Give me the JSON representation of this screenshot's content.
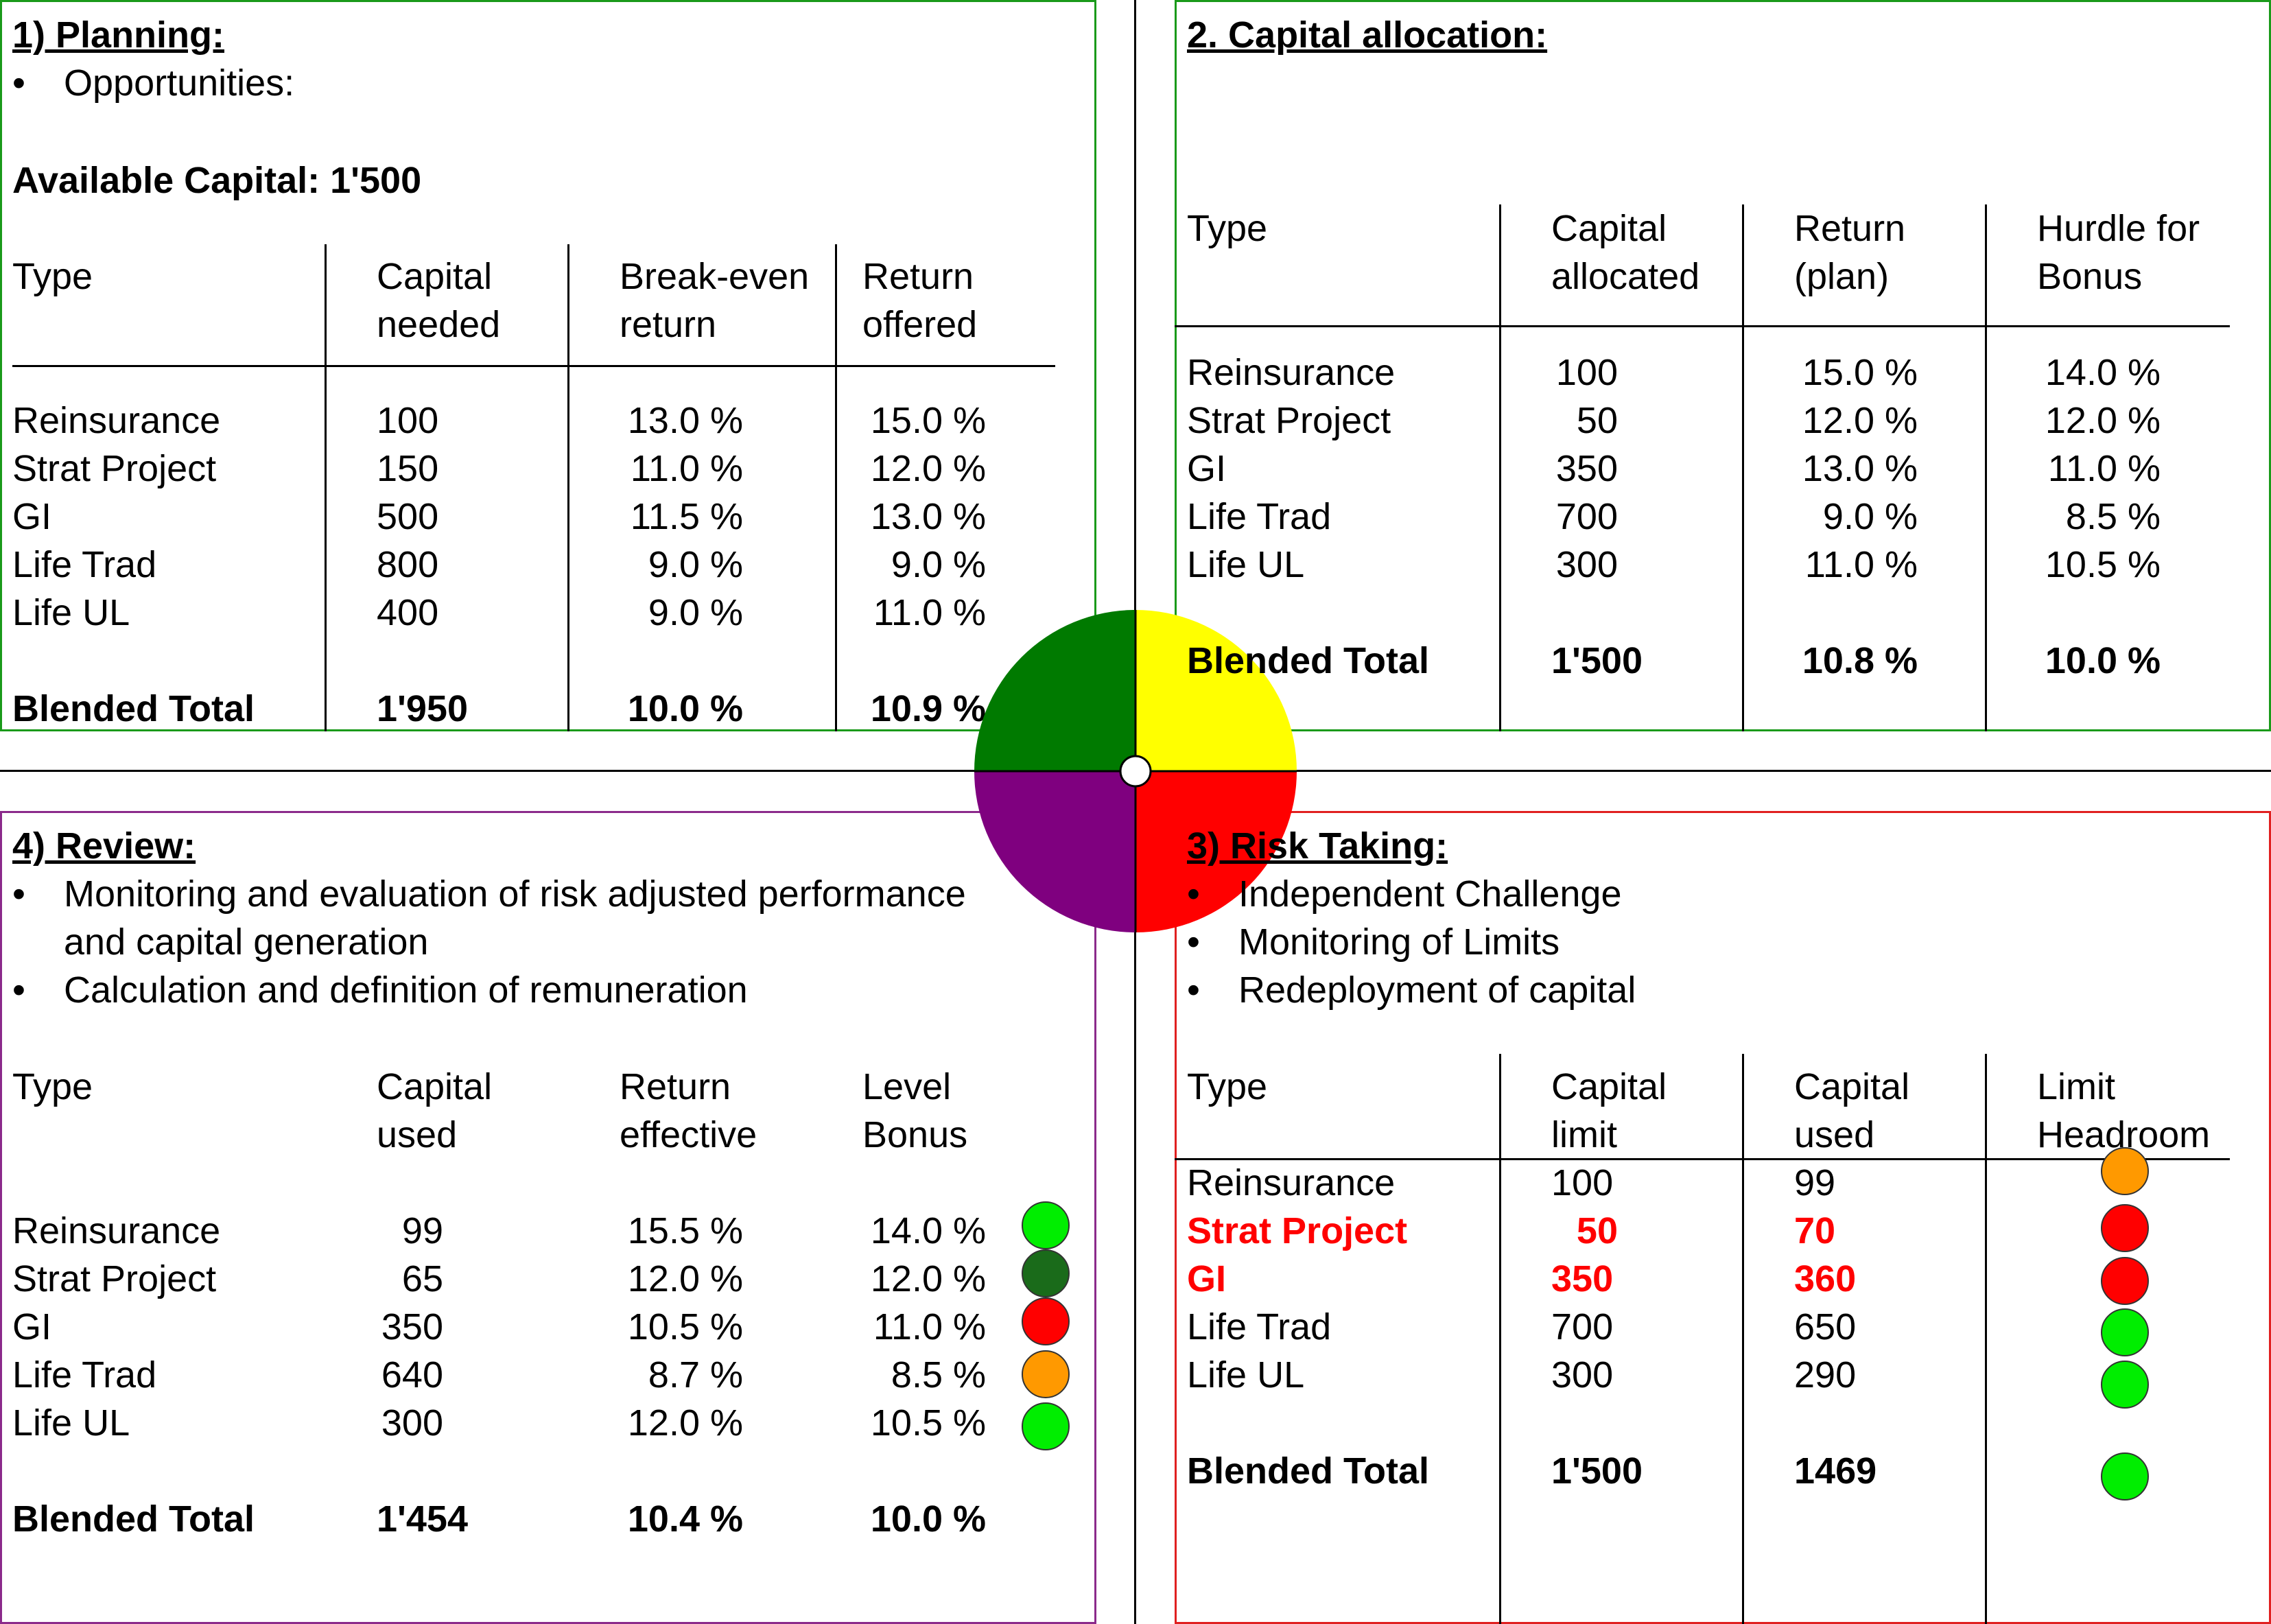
{
  "colors": {
    "q1_border": "#1a9a1a",
    "q2_border": "#1a9a1a",
    "q3_border": "#e02020",
    "q4_border": "#8b2a8b",
    "green": "#007a00",
    "yellow": "#ffff00",
    "red": "#ff0000",
    "purple": "#7f007f",
    "light_green": "#00ee00",
    "dark_green": "#1a6b1a",
    "orange": "#ff9900"
  },
  "q1": {
    "title": "1) Planning:",
    "bullets": [
      "Opportunities:"
    ],
    "available_capital": "Available Capital:  1'500",
    "headers": [
      [
        "Type",
        ""
      ],
      [
        "Capital",
        "needed"
      ],
      [
        "Break-even",
        "return"
      ],
      [
        "Return",
        "offered"
      ]
    ],
    "rows": [
      [
        "Reinsurance",
        "100",
        "13.0 %",
        "15.0 %"
      ],
      [
        "Strat Project",
        "150",
        "11.0 %",
        "12.0 %"
      ],
      [
        "GI",
        "500",
        "11.5 %",
        "13.0 %"
      ],
      [
        "Life Trad",
        "800",
        "9.0 %",
        "9.0 %"
      ],
      [
        "Life UL",
        "400",
        "9.0 %",
        "11.0 %"
      ]
    ],
    "total": [
      "Blended Total",
      "1'950",
      "10.0 %",
      "10.9 %"
    ]
  },
  "q2": {
    "title": "2. Capital allocation:",
    "headers": [
      [
        "Type",
        ""
      ],
      [
        "Capital",
        "allocated"
      ],
      [
        "Return",
        "(plan)"
      ],
      [
        "Hurdle for",
        "Bonus"
      ]
    ],
    "rows": [
      [
        "Reinsurance",
        "100",
        "15.0 %",
        "14.0 %"
      ],
      [
        "Strat Project",
        "50",
        "12.0 %",
        "12.0 %"
      ],
      [
        "GI",
        "350",
        "13.0 %",
        "11.0 %"
      ],
      [
        "Life Trad",
        "700",
        "9.0 %",
        "8.5 %"
      ],
      [
        "Life UL",
        "300",
        "11.0 %",
        "10.5 %"
      ]
    ],
    "total": [
      "Blended Total",
      "1'500",
      "10.8 %",
      "10.0 %"
    ]
  },
  "q3": {
    "title": "3) Risk Taking:",
    "bullets": [
      "Independent Challenge",
      "Monitoring of Limits",
      "Redeployment of capital"
    ],
    "headers": [
      [
        "Type",
        ""
      ],
      [
        "Capital",
        "limit"
      ],
      [
        "Capital",
        "used"
      ],
      [
        "Limit",
        "Headroom"
      ]
    ],
    "rows": [
      [
        "Reinsurance",
        "100",
        "99"
      ],
      [
        "Strat Project",
        "50",
        "70"
      ],
      [
        "GI",
        "350",
        "360"
      ],
      [
        "Life Trad",
        "700",
        "650"
      ],
      [
        "Life UL",
        "300",
        "290"
      ]
    ],
    "total": [
      "Blended Total",
      "1'500",
      "1469"
    ]
  },
  "q4": {
    "title": "4) Review:",
    "bullets": [
      "Monitoring and evaluation of risk adjusted performance",
      "and capital generation",
      "Calculation and definition of remuneration"
    ],
    "headers": [
      [
        "Type",
        ""
      ],
      [
        "Capital",
        "used"
      ],
      [
        "Return",
        "effective"
      ],
      [
        "Level",
        "Bonus"
      ]
    ],
    "rows": [
      [
        "Reinsurance",
        "99",
        "15.5 %",
        "14.0 %"
      ],
      [
        "Strat Project",
        "65",
        "12.0 %",
        "12.0 %"
      ],
      [
        "GI",
        "350",
        "10.5 %",
        "11.0 %"
      ],
      [
        "Life Trad",
        "640",
        "8.7 %",
        "8.5 %"
      ],
      [
        "Life UL",
        "300",
        "12.0 %",
        "10.5 %"
      ]
    ],
    "total": [
      "Blended Total",
      "1'454",
      "10.4 %",
      "10.0 %"
    ]
  }
}
